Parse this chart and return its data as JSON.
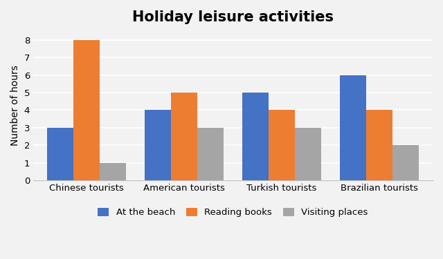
{
  "title": "Holiday leisure activities",
  "ylabel": "Number of hours",
  "categories": [
    "Chinese tourists",
    "American tourists",
    "Turkish tourists",
    "Brazilian tourists"
  ],
  "series": [
    {
      "label": "At the beach",
      "color": "#4472C4",
      "values": [
        3,
        4,
        5,
        6
      ]
    },
    {
      "label": "Reading books",
      "color": "#ED7D31",
      "values": [
        8,
        5,
        4,
        4
      ]
    },
    {
      "label": "Visiting places",
      "color": "#A5A5A5",
      "values": [
        1,
        3,
        3,
        2
      ]
    }
  ],
  "ylim": [
    0,
    8.5
  ],
  "yticks": [
    0,
    1,
    2,
    3,
    4,
    5,
    6,
    7,
    8
  ],
  "bar_width": 0.27,
  "title_fontsize": 15,
  "axis_label_fontsize": 10,
  "tick_fontsize": 9.5,
  "legend_fontsize": 9.5,
  "background_color": "#F2F2F2",
  "grid_color": "#FFFFFF",
  "plot_bg_color": "#F2F2F2"
}
